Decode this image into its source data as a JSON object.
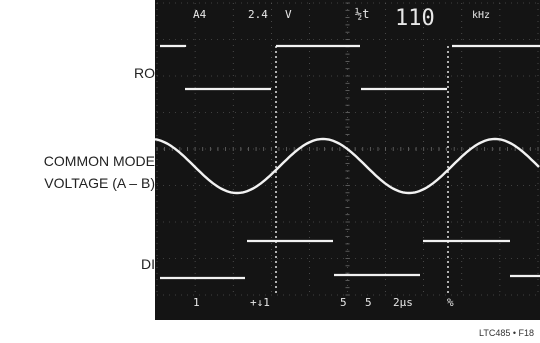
{
  "labels": {
    "ro": "RO",
    "common_mode_line1": "COMMON MODE",
    "common_mode_line2": "VOLTAGE (A – B)",
    "di": "DI"
  },
  "readout_top": {
    "ch_a": "A4",
    "volts": "2.4",
    "unit": "V",
    "t_symbol": "½t",
    "frequency": "110",
    "freq_unit": "kHz"
  },
  "readout_bottom": {
    "ch1": "1",
    "ch2": "+↓1",
    "a": "5",
    "b": "5",
    "timebase": "2µs",
    "mode": "%"
  },
  "figure_label": "LTC485 • F18",
  "colors": {
    "screen_bg": "#141414",
    "trace": "#f2f2f2",
    "grid": "#6a6a6a"
  }
}
